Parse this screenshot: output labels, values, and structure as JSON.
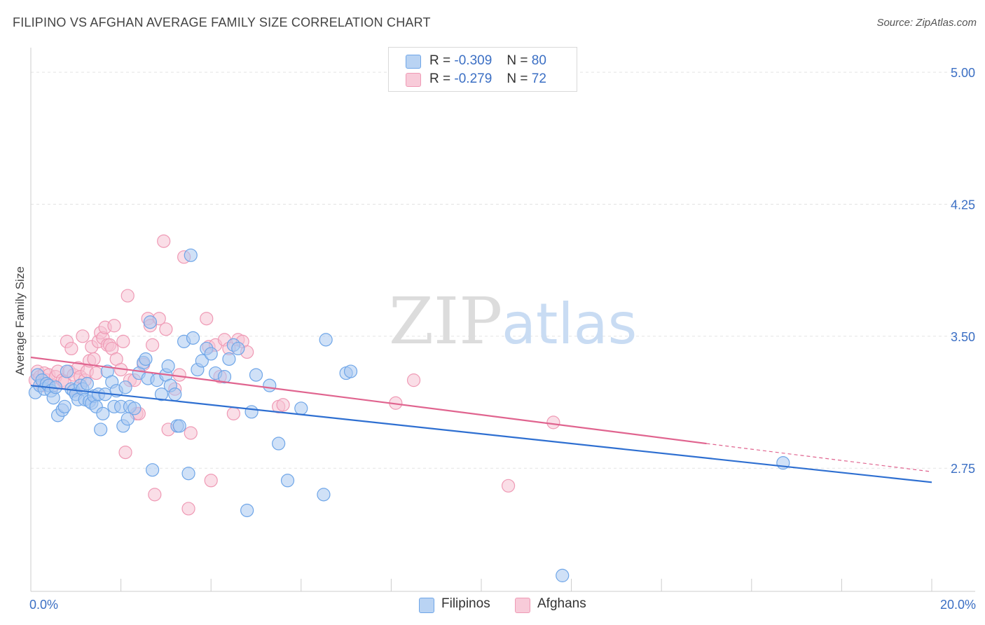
{
  "title": "FILIPINO VS AFGHAN AVERAGE FAMILY SIZE CORRELATION CHART",
  "source": "Source: ZipAtlas.com",
  "watermark": {
    "zip": "ZIP",
    "atlas": "atlas"
  },
  "legend": {
    "filipino": {
      "r_label": "R =",
      "r_value": "-0.309",
      "n_label": "N =",
      "n_value": "80"
    },
    "afghan": {
      "r_label": "R =",
      "r_value": "-0.279",
      "n_label": "N =",
      "n_value": "72"
    }
  },
  "chart_data": {
    "type": "scatter",
    "title": "FILIPINO VS AFGHAN AVERAGE FAMILY SIZE CORRELATION CHART",
    "xlabel": "",
    "ylabel": "Average Family Size",
    "xlim": [
      0,
      20
    ],
    "ylim": [
      2.05,
      5.1
    ],
    "y_ticks": [
      2.75,
      3.5,
      4.25,
      5.0
    ],
    "y_tick_labels": [
      "2.75",
      "3.50",
      "4.25",
      "5.00"
    ],
    "x_tick_labels": [
      "0.0%",
      "20.0%"
    ],
    "series": [
      {
        "name": "Filipinos",
        "color": "#6fa6e8",
        "fill": "#a9c9f0",
        "line_color": "#2e6fd1",
        "trend": {
          "x0": 0,
          "y0": 3.22,
          "x1": 20,
          "y1": 2.67
        },
        "points": [
          [
            0.1,
            3.18
          ],
          [
            0.15,
            3.28
          ],
          [
            0.2,
            3.22
          ],
          [
            0.25,
            3.25
          ],
          [
            0.3,
            3.2
          ],
          [
            0.35,
            3.23
          ],
          [
            0.4,
            3.22
          ],
          [
            0.45,
            3.19
          ],
          [
            0.5,
            3.15
          ],
          [
            0.55,
            3.21
          ],
          [
            0.6,
            3.05
          ],
          [
            0.7,
            3.08
          ],
          [
            0.75,
            3.1
          ],
          [
            0.8,
            3.3
          ],
          [
            0.9,
            3.2
          ],
          [
            0.95,
            3.19
          ],
          [
            1.0,
            3.17
          ],
          [
            1.05,
            3.14
          ],
          [
            1.1,
            3.22
          ],
          [
            1.15,
            3.2
          ],
          [
            1.2,
            3.14
          ],
          [
            1.25,
            3.23
          ],
          [
            1.3,
            3.13
          ],
          [
            1.35,
            3.12
          ],
          [
            1.4,
            3.16
          ],
          [
            1.45,
            3.1
          ],
          [
            1.5,
            3.17
          ],
          [
            1.55,
            2.97
          ],
          [
            1.6,
            3.06
          ],
          [
            1.65,
            3.17
          ],
          [
            1.7,
            3.3
          ],
          [
            1.8,
            3.24
          ],
          [
            1.85,
            3.1
          ],
          [
            1.9,
            3.19
          ],
          [
            2.0,
            3.1
          ],
          [
            2.05,
            2.99
          ],
          [
            2.1,
            3.21
          ],
          [
            2.15,
            3.03
          ],
          [
            2.2,
            3.1
          ],
          [
            2.3,
            3.09
          ],
          [
            2.4,
            3.29
          ],
          [
            2.5,
            3.35
          ],
          [
            2.55,
            3.37
          ],
          [
            2.6,
            3.26
          ],
          [
            2.65,
            3.58
          ],
          [
            2.7,
            2.74
          ],
          [
            2.8,
            3.25
          ],
          [
            2.9,
            3.17
          ],
          [
            3.0,
            3.28
          ],
          [
            3.05,
            3.33
          ],
          [
            3.1,
            3.22
          ],
          [
            3.2,
            3.17
          ],
          [
            3.25,
            2.99
          ],
          [
            3.3,
            2.99
          ],
          [
            3.4,
            3.47
          ],
          [
            3.5,
            2.72
          ],
          [
            3.55,
            3.96
          ],
          [
            3.6,
            3.49
          ],
          [
            3.7,
            3.31
          ],
          [
            3.8,
            3.36
          ],
          [
            3.9,
            3.43
          ],
          [
            4.0,
            3.4
          ],
          [
            4.1,
            3.29
          ],
          [
            4.3,
            3.27
          ],
          [
            4.4,
            3.37
          ],
          [
            4.5,
            3.45
          ],
          [
            4.6,
            3.43
          ],
          [
            4.8,
            2.51
          ],
          [
            4.9,
            3.07
          ],
          [
            5.0,
            3.28
          ],
          [
            5.3,
            3.22
          ],
          [
            5.5,
            2.89
          ],
          [
            5.7,
            2.68
          ],
          [
            6.0,
            3.09
          ],
          [
            6.5,
            2.6
          ],
          [
            6.55,
            3.48
          ],
          [
            7.0,
            3.29
          ],
          [
            7.1,
            3.3
          ],
          [
            11.8,
            2.14
          ],
          [
            16.7,
            2.78
          ]
        ]
      },
      {
        "name": "Afghans",
        "color": "#ef9ab5",
        "fill": "#f6c2d3",
        "line_color": "#e0648f",
        "trend": {
          "x0": 0,
          "y0": 3.38,
          "x1": 15.0,
          "y1": 2.89
        },
        "trend_dashed": {
          "x0": 15.0,
          "y0": 2.89,
          "x1": 20,
          "y1": 2.73
        },
        "points": [
          [
            0.1,
            3.25
          ],
          [
            0.15,
            3.3
          ],
          [
            0.2,
            3.27
          ],
          [
            0.25,
            3.22
          ],
          [
            0.3,
            3.29
          ],
          [
            0.35,
            3.25
          ],
          [
            0.4,
            3.28
          ],
          [
            0.5,
            3.22
          ],
          [
            0.55,
            3.27
          ],
          [
            0.6,
            3.3
          ],
          [
            0.7,
            3.25
          ],
          [
            0.75,
            3.24
          ],
          [
            0.8,
            3.47
          ],
          [
            0.85,
            3.3
          ],
          [
            0.9,
            3.43
          ],
          [
            0.95,
            3.28
          ],
          [
            1.0,
            3.2
          ],
          [
            1.05,
            3.32
          ],
          [
            1.1,
            3.27
          ],
          [
            1.15,
            3.5
          ],
          [
            1.2,
            3.25
          ],
          [
            1.25,
            3.3
          ],
          [
            1.3,
            3.36
          ],
          [
            1.35,
            3.44
          ],
          [
            1.4,
            3.37
          ],
          [
            1.45,
            3.29
          ],
          [
            1.5,
            3.47
          ],
          [
            1.55,
            3.52
          ],
          [
            1.6,
            3.49
          ],
          [
            1.65,
            3.55
          ],
          [
            1.7,
            3.45
          ],
          [
            1.75,
            3.45
          ],
          [
            1.8,
            3.43
          ],
          [
            1.85,
            3.56
          ],
          [
            1.9,
            3.37
          ],
          [
            2.0,
            3.31
          ],
          [
            2.05,
            3.47
          ],
          [
            2.1,
            2.84
          ],
          [
            2.15,
            3.73
          ],
          [
            2.2,
            3.25
          ],
          [
            2.3,
            3.25
          ],
          [
            2.35,
            3.06
          ],
          [
            2.4,
            3.06
          ],
          [
            2.5,
            3.34
          ],
          [
            2.6,
            3.6
          ],
          [
            2.65,
            3.56
          ],
          [
            2.7,
            3.45
          ],
          [
            2.75,
            2.6
          ],
          [
            2.85,
            3.6
          ],
          [
            2.95,
            4.04
          ],
          [
            3.0,
            3.54
          ],
          [
            3.05,
            2.97
          ],
          [
            3.2,
            3.2
          ],
          [
            3.3,
            3.28
          ],
          [
            3.4,
            3.95
          ],
          [
            3.5,
            2.52
          ],
          [
            3.55,
            2.95
          ],
          [
            3.9,
            3.6
          ],
          [
            3.95,
            3.44
          ],
          [
            4.0,
            2.68
          ],
          [
            4.1,
            3.45
          ],
          [
            4.2,
            3.27
          ],
          [
            4.3,
            3.48
          ],
          [
            4.4,
            3.43
          ],
          [
            4.5,
            3.06
          ],
          [
            4.6,
            3.48
          ],
          [
            4.7,
            3.47
          ],
          [
            4.8,
            3.41
          ],
          [
            5.5,
            3.1
          ],
          [
            5.6,
            3.11
          ],
          [
            8.1,
            3.12
          ],
          [
            8.5,
            3.25
          ]
        ],
        "extra_points": [
          [
            10.6,
            2.65
          ],
          [
            11.6,
            3.01
          ]
        ]
      }
    ]
  },
  "bottom_legend": {
    "filipinos": "Filipinos",
    "afghans": "Afghans"
  }
}
